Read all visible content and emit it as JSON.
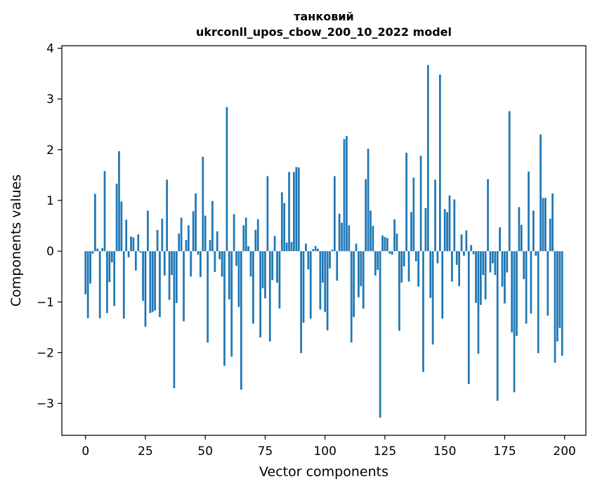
{
  "chart_data": {
    "type": "bar",
    "title_line1": "танковий",
    "title_line2": "ukrconll_upos_cbow_200_10_2022 model",
    "xlabel": "Vector components",
    "ylabel": "Components values",
    "xlim": [
      -9.9,
      208.9
    ],
    "ylim": [
      -3.63,
      4.05
    ],
    "xticks": [
      0,
      25,
      50,
      75,
      100,
      125,
      150,
      175,
      200
    ],
    "yticks": [
      -3,
      -2,
      -1,
      0,
      1,
      2,
      3,
      4
    ],
    "ytick_labels": [
      "−3",
      "−2",
      "−1",
      "0",
      "1",
      "2",
      "3",
      "4"
    ],
    "bar_color": "#1f77b4",
    "grid": false,
    "x": [
      0,
      1,
      2,
      3,
      4,
      5,
      6,
      7,
      8,
      9,
      10,
      11,
      12,
      13,
      14,
      15,
      16,
      17,
      18,
      19,
      20,
      21,
      22,
      23,
      24,
      25,
      26,
      27,
      28,
      29,
      30,
      31,
      32,
      33,
      34,
      35,
      36,
      37,
      38,
      39,
      40,
      41,
      42,
      43,
      44,
      45,
      46,
      47,
      48,
      49,
      50,
      51,
      52,
      53,
      54,
      55,
      56,
      57,
      58,
      59,
      60,
      61,
      62,
      63,
      64,
      65,
      66,
      67,
      68,
      69,
      70,
      71,
      72,
      73,
      74,
      75,
      76,
      77,
      78,
      79,
      80,
      81,
      82,
      83,
      84,
      85,
      86,
      87,
      88,
      89,
      90,
      91,
      92,
      93,
      94,
      95,
      96,
      97,
      98,
      99,
      100,
      101,
      102,
      103,
      104,
      105,
      106,
      107,
      108,
      109,
      110,
      111,
      112,
      113,
      114,
      115,
      116,
      117,
      118,
      119,
      120,
      121,
      122,
      123,
      124,
      125,
      126,
      127,
      128,
      129,
      130,
      131,
      132,
      133,
      134,
      135,
      136,
      137,
      138,
      139,
      140,
      141,
      142,
      143,
      144,
      145,
      146,
      147,
      148,
      149,
      150,
      151,
      152,
      153,
      154,
      155,
      156,
      157,
      158,
      159,
      160,
      161,
      162,
      163,
      164,
      165,
      166,
      167,
      168,
      169,
      170,
      171,
      172,
      173,
      174,
      175,
      176,
      177,
      178,
      179,
      180,
      181,
      182,
      183,
      184,
      185,
      186,
      187,
      188,
      189,
      190,
      191,
      192,
      193,
      194,
      195,
      196,
      197,
      198,
      199
    ],
    "values": [
      -0.85,
      -1.32,
      -0.64,
      -0.05,
      1.13,
      0.05,
      -1.32,
      0.06,
      1.58,
      -1.22,
      -0.61,
      -0.22,
      -1.08,
      1.33,
      1.97,
      0.98,
      -1.33,
      0.62,
      -0.12,
      0.29,
      0.27,
      -0.38,
      0.33,
      -0.03,
      -0.98,
      -1.49,
      0.8,
      -1.22,
      -1.2,
      -1.17,
      0.42,
      -1.3,
      0.64,
      -0.48,
      1.41,
      -0.96,
      -0.47,
      -2.7,
      -1.02,
      0.35,
      0.66,
      -1.38,
      0.22,
      0.51,
      -0.5,
      0.79,
      1.14,
      -0.07,
      -0.51,
      1.86,
      0.7,
      -1.8,
      0.22,
      0.99,
      -0.41,
      0.39,
      -0.16,
      -0.5,
      -2.26,
      2.84,
      -0.95,
      -2.08,
      0.73,
      -0.29,
      -1.1,
      -2.73,
      0.51,
      0.66,
      0.1,
      -0.5,
      -1.43,
      0.42,
      0.63,
      -1.7,
      -0.73,
      -0.93,
      1.48,
      -1.78,
      -0.57,
      0.3,
      -0.62,
      -1.13,
      1.16,
      0.95,
      0.17,
      1.56,
      0.18,
      1.56,
      1.66,
      1.65,
      -2.01,
      -1.41,
      0.15,
      -0.36,
      -1.33,
      0.04,
      0.1,
      0.05,
      -1.15,
      -0.62,
      -1.2,
      -1.56,
      -0.34,
      0.03,
      1.48,
      -0.58,
      0.74,
      0.56,
      2.21,
      2.27,
      0.51,
      -1.8,
      -1.3,
      0.15,
      -0.91,
      -0.69,
      -1.13,
      1.42,
      2.02,
      0.8,
      0.5,
      -0.48,
      -0.37,
      -3.28,
      0.31,
      0.28,
      0.26,
      -0.05,
      -0.07,
      0.63,
      0.35,
      -1.57,
      -0.62,
      -0.3,
      1.94,
      -0.6,
      0.77,
      1.45,
      -0.2,
      -0.7,
      1.88,
      -2.38,
      0.85,
      3.67,
      -0.92,
      -1.84,
      1.41,
      -0.24,
      3.48,
      -1.33,
      0.83,
      0.77,
      1.1,
      -0.6,
      1.02,
      -0.27,
      -0.69,
      0.33,
      -0.09,
      0.41,
      -2.62,
      0.12,
      -0.06,
      -1.02,
      -2.02,
      -1.06,
      -0.47,
      -0.95,
      1.42,
      -0.42,
      -0.24,
      -0.47,
      -2.95,
      0.47,
      -0.7,
      -1.03,
      -0.42,
      2.76,
      -1.6,
      -2.78,
      -1.67,
      0.87,
      0.52,
      -0.55,
      -1.43,
      1.57,
      -1.23,
      0.8,
      -0.09,
      -2.01,
      2.3,
      1.05,
      1.05,
      -1.27,
      0.64,
      1.14,
      -2.2,
      -1.78,
      -1.51,
      -2.06
    ]
  }
}
